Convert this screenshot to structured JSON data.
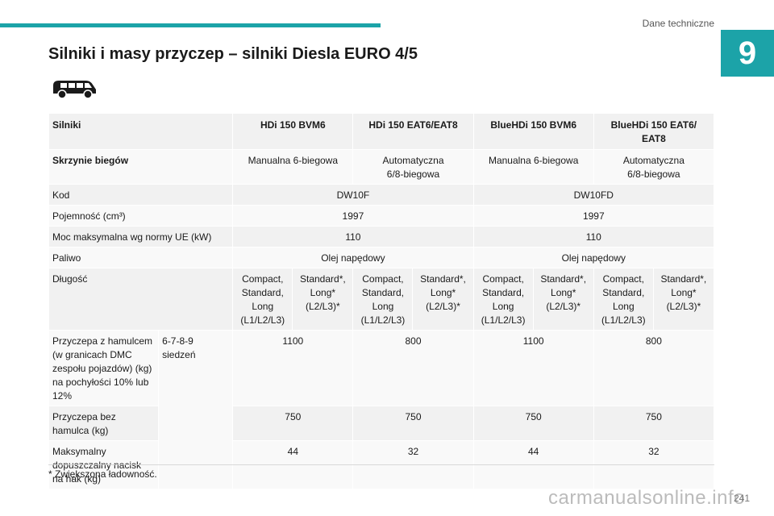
{
  "header": {
    "chapter_name": "Dane techniczne",
    "chapter_number": "9",
    "accent_color": "#1ca3a8"
  },
  "title": "Silniki i masy przyczep – silniki Diesla EURO 4/5",
  "icon": "van-icon",
  "table": {
    "row_engines": {
      "label": "Silniki",
      "c1": "HDi 150 BVM6",
      "c2": "HDi 150 EAT6/EAT8",
      "c3": "BlueHDi 150 BVM6",
      "c4": "BlueHDi 150 EAT6/\nEAT8"
    },
    "row_gearbox": {
      "label": "Skrzynie biegów",
      "c1": "Manualna 6-biegowa",
      "c2": "Automatyczna\n6/8-biegowa",
      "c3": "Manualna 6-biegowa",
      "c4": "Automatyczna\n6/8-biegowa"
    },
    "row_code": {
      "label": "Kod",
      "c12": "DW10F",
      "c34": "DW10FD"
    },
    "row_capacity": {
      "label": "Pojemność (cm³)",
      "c12": "1997",
      "c34": "1997"
    },
    "row_power": {
      "label": "Moc maksymalna wg normy UE (kW)",
      "c12": "110",
      "c34": "110"
    },
    "row_fuel": {
      "label": "Paliwo",
      "c12": "Olej napędowy",
      "c34": "Olej napędowy"
    },
    "row_length": {
      "label": "Długość",
      "v1": "Compact,\nStandard,\nLong\n(L1/L2/L3)",
      "v2": "Standard*,\nLong*\n(L2/L3)*",
      "v3": "Compact,\nStandard,\nLong\n(L1/L2/L3)",
      "v4": "Standard*,\nLong*\n(L2/L3)*",
      "v5": "Compact,\nStandard,\nLong\n(L1/L2/L3)",
      "v6": "Standard*,\nLong*\n(L2/L3)*",
      "v7": "Compact,\nStandard,\nLong\n(L1/L2/L3)",
      "v8": "Standard*,\nLong*\n(L2/L3)*"
    },
    "seats_label": "6-7-8-9 siedzeń",
    "row_braked": {
      "label": "Przyczepa z hamulcem\n(w granicach DMC\nzespołu pojazdów) (kg)\nna pochyłości 10% lub\n12%",
      "c1": "1100",
      "c2": "800",
      "c3": "1100",
      "c4": "800"
    },
    "row_unbraked": {
      "label": "Przyczepa bez\nhamulca (kg)",
      "c1": "750",
      "c2": "750",
      "c3": "750",
      "c4": "750"
    },
    "row_hitch": {
      "label": "Maksymalny\ndopuszczalny nacisk\nna hak (kg)",
      "c1": "44",
      "c2": "32",
      "c3": "44",
      "c4": "32"
    }
  },
  "footnote": "*  Zwiększona ładowność.",
  "page_number": "241",
  "watermark": "carmanualsonline.info"
}
